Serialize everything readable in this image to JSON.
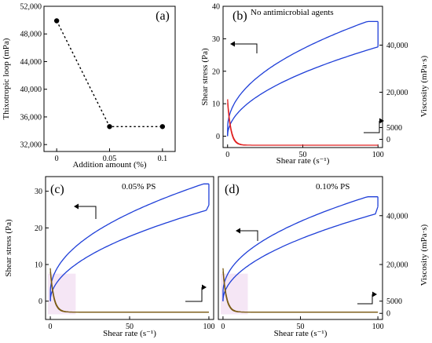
{
  "chart_data": [
    {
      "panel": "(a)",
      "type": "scatter",
      "x": [
        "0",
        "0.05",
        "0.1"
      ],
      "values": [
        49900,
        34600,
        34600
      ],
      "xlabel": "Addition amount (%)",
      "ylabel": "Thixotropic loop (mPa)",
      "ylim": [
        31000,
        52000
      ],
      "yticks": [
        "32,000",
        "36,000",
        "40,000",
        "44,000",
        "48,000",
        "52,000"
      ],
      "line_style": "dotted"
    },
    {
      "panel": "(b)",
      "type": "line",
      "annotation": "No antimicrobial agents",
      "xlabel": "Shear rate (s⁻¹)",
      "ylabel": "Shear stress (Pa)",
      "y2label": "Viscosity (mPa·s)",
      "xlim": [
        -3,
        103
      ],
      "ylim": [
        -3.5,
        40
      ],
      "y2lim": [
        -3500,
        56500
      ],
      "xticks": [
        "0",
        "50",
        "100"
      ],
      "yticks": [
        "0",
        "10",
        "20",
        "30",
        "40"
      ],
      "y2ticks": [
        "0",
        "5000",
        "20,000",
        "40,000"
      ],
      "shear_stress": {
        "color": "#1f3fd8",
        "up_end": 35.3,
        "down_end": 27.5,
        "up_coef": 3.85,
        "down_coef": 2.75
      },
      "viscosity": {
        "color": "#e02020",
        "peak": 17000,
        "floor": -2500
      }
    },
    {
      "panel": "(c)",
      "type": "line",
      "annotation": "0.05% PS",
      "xlabel": "Shear rate (s⁻¹)",
      "ylabel": "Shear stress (Pa)",
      "xlim": [
        -3,
        103
      ],
      "ylim": [
        -5,
        34
      ],
      "xticks": [
        "0",
        "50",
        "100"
      ],
      "yticks": [
        "0",
        "10",
        "20",
        "30"
      ],
      "shear_stress": {
        "color": "#1f3fd8",
        "up_end": 32,
        "down_end": 26.2,
        "up_coef": 3.4,
        "down_coef": 2.5
      },
      "viscosity": {
        "color": "#7a5a14",
        "peak": 9,
        "floor": -3
      }
    },
    {
      "panel": "(d)",
      "type": "line",
      "annotation": "0.10% PS",
      "xlabel": "Shear rate (s⁻¹)",
      "y2label": "Viscosity (mPa·s)",
      "xlim": [
        -3,
        103
      ],
      "ylim": [
        -5,
        34
      ],
      "y2lim": [
        -2500,
        56000
      ],
      "xticks": [
        "0",
        "50",
        "100"
      ],
      "y2ticks": [
        "0",
        "5000",
        "20,000",
        "40,000"
      ],
      "shear_stress": {
        "color": "#1f3fd8",
        "up_end": 28.5,
        "down_end": 25.8,
        "up_coef": 3.05,
        "down_coef": 2.4
      },
      "viscosity": {
        "color": "#7a5a14",
        "peak": 9,
        "floor": -3
      }
    }
  ]
}
